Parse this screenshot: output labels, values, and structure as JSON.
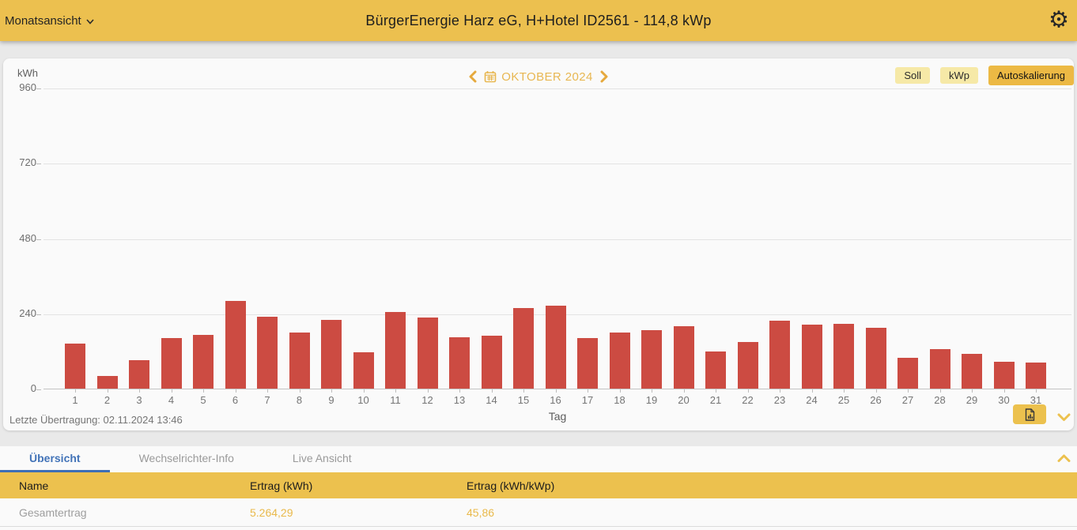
{
  "app_bar": {
    "view_selector": "Monatsansicht",
    "title": "BürgerEnergie Harz eG, H+Hotel ID2561 - 114,8 kWp"
  },
  "chart_card": {
    "unit_label": "kWh",
    "month_nav": {
      "label": "OKTOBER 2024"
    },
    "toggles": [
      {
        "label": "Soll",
        "active": false
      },
      {
        "label": "kWp",
        "active": false
      },
      {
        "label": "Autoskalierung",
        "active": true
      }
    ],
    "last_transmission": "Letzte Übertragung: 02.11.2024 13:46"
  },
  "chart_data": {
    "type": "bar",
    "title": "OKTOBER 2024",
    "xlabel": "Tag",
    "ylabel": "kWh",
    "ylim": [
      0,
      960
    ],
    "yticks": [
      0,
      240,
      480,
      720,
      960
    ],
    "grid": true,
    "bar_color": "#cc4b42",
    "categories": [
      1,
      2,
      3,
      4,
      5,
      6,
      7,
      8,
      9,
      10,
      11,
      12,
      13,
      14,
      15,
      16,
      17,
      18,
      19,
      20,
      21,
      22,
      23,
      24,
      25,
      26,
      27,
      28,
      29,
      30,
      31
    ],
    "values": [
      144,
      40,
      91,
      162,
      171,
      279,
      229,
      180,
      220,
      115,
      245,
      226,
      163,
      169,
      256,
      264,
      161,
      178,
      186,
      199,
      118,
      150,
      218,
      205,
      207,
      194,
      98,
      127,
      112,
      86,
      84
    ]
  },
  "tabs": {
    "items": [
      {
        "label": "Übersicht",
        "active": true
      },
      {
        "label": "Wechselrichter-Info",
        "active": false
      },
      {
        "label": "Live Ansicht",
        "active": false
      }
    ]
  },
  "table": {
    "headers": [
      "Name",
      "Ertrag (kWh)",
      "Ertrag (kWh/kWp)"
    ],
    "rows": [
      {
        "name": "Gesamtertrag",
        "ertrag_kwh": "5.264,29",
        "ertrag_kwh_kwp": "45,86"
      }
    ]
  },
  "colors": {
    "accent_gold": "#ecc04f",
    "toggle_inactive": "#f6e9a7",
    "toggle_active": "#ecb944",
    "bar_red": "#cc4b42",
    "tab_active_blue": "#4273b8",
    "value_gold": "#e9b94a"
  },
  "icons": {
    "gear": "gear-icon",
    "dropdown_caret": "chevron-down-icon",
    "month_prev": "chevron-left-icon",
    "month_next": "chevron-right-icon",
    "calendar": "calendar-icon",
    "export": "file-chart-icon",
    "collapse_chart": "chevron-down-icon",
    "collapse_panel": "chevron-up-icon"
  }
}
